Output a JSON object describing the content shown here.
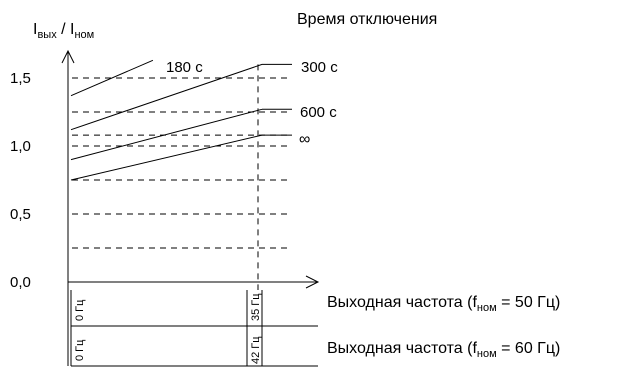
{
  "chart_data": {
    "type": "line",
    "ylabel_main": "I",
    "ylabel_main_sub": "вых",
    "ylabel_sep": " / I",
    "ylabel_den_sub": "ном",
    "legend_title": "Время отключения",
    "yticks": [
      "0,0",
      "0,5",
      "1,0",
      "1,5"
    ],
    "ylim": [
      0,
      1.75
    ],
    "xlim": [
      0,
      35
    ],
    "dashed_levels": [
      0.25,
      0.5,
      0.75,
      1.0,
      1.08,
      1.25,
      1.5
    ],
    "series": [
      {
        "name": "180 с",
        "x": [
          0,
          15
        ],
        "y": [
          1.37,
          1.63
        ]
      },
      {
        "name": "300 с",
        "x": [
          0,
          35
        ],
        "y": [
          1.12,
          1.6
        ]
      },
      {
        "name": "600 с",
        "x": [
          0,
          35
        ],
        "y": [
          0.9,
          1.27
        ]
      },
      {
        "name": "∞",
        "x": [
          0,
          35
        ],
        "y": [
          0.75,
          1.08
        ]
      }
    ],
    "x_scales": [
      {
        "label_pre": "Выходная частота (f",
        "label_sub": "ном",
        "label_post": " = 50 Гц)",
        "start": "0 Гц",
        "end": "35 Гц"
      },
      {
        "label_pre": "Выходная частота (f",
        "label_sub": "ном",
        "label_post": " = 60 Гц)",
        "start": "0 Гц",
        "end": "42 Гц"
      }
    ]
  }
}
